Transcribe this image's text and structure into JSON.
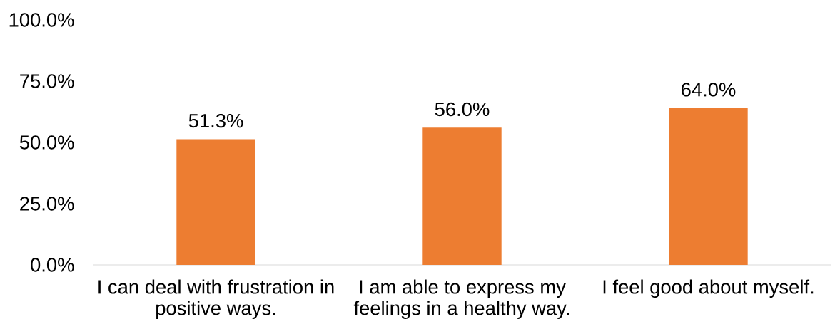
{
  "chart_data": {
    "type": "bar",
    "categories": [
      "I can deal with frustration in positive ways.",
      "I am able to express my feelings in a healthy way.",
      "I feel good about myself."
    ],
    "values": [
      51.3,
      56.0,
      64.0
    ],
    "value_labels": [
      "51.3%",
      "56.0%",
      "64.0%"
    ],
    "color": "#ed7d31",
    "ylim": [
      0,
      100
    ],
    "yticks": [
      {
        "value": 0,
        "label": "0.0%"
      },
      {
        "value": 25,
        "label": "25.0%"
      },
      {
        "value": 50,
        "label": "50.0%"
      },
      {
        "value": 75,
        "label": "75.0%"
      },
      {
        "value": 100,
        "label": "100.0%"
      }
    ]
  }
}
